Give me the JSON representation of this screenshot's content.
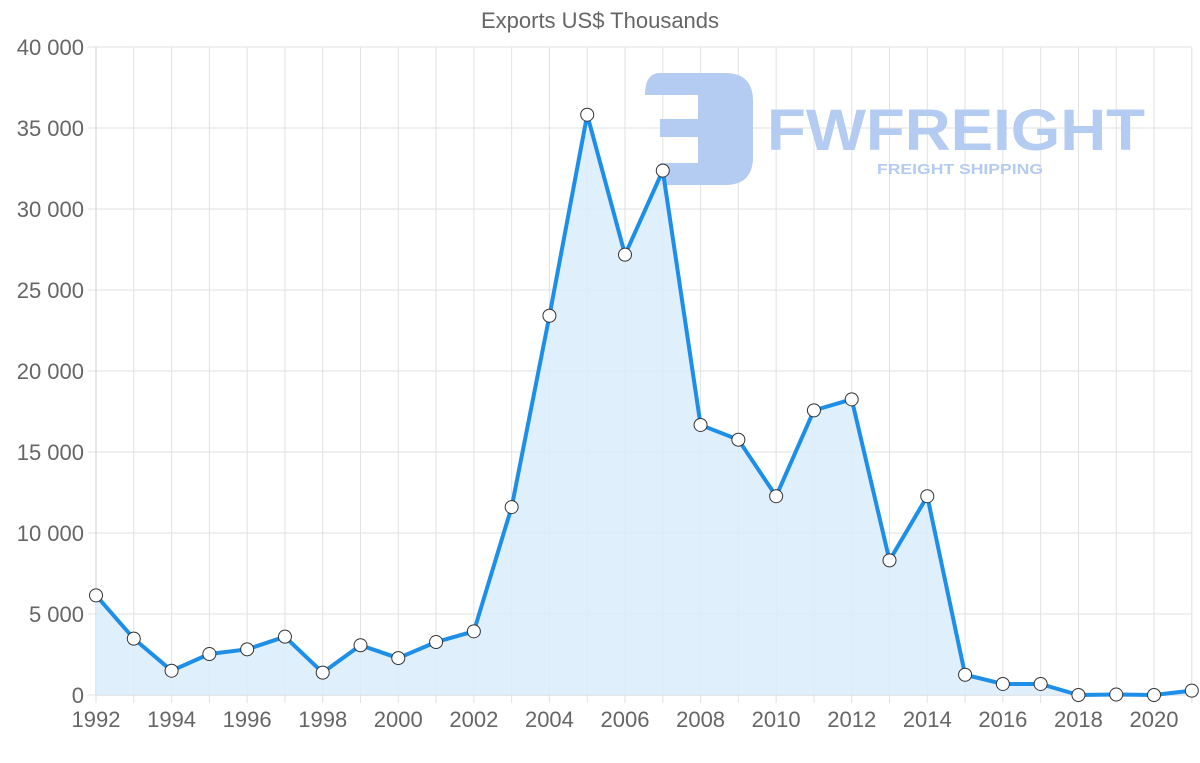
{
  "chart_data": {
    "type": "area",
    "title": "Exports US$ Thousands",
    "xlabel": "",
    "ylabel": "",
    "x": [
      1992,
      1993,
      1994,
      1995,
      1996,
      1997,
      1998,
      1999,
      2000,
      2001,
      2002,
      2003,
      2004,
      2005,
      2006,
      2007,
      2008,
      2009,
      2010,
      2011,
      2012,
      2013,
      2014,
      2015,
      2016,
      2017,
      2018,
      2019,
      2020,
      2021
    ],
    "series": [
      {
        "name": "Exports US$ Thousands",
        "values": [
          6150,
          3480,
          1500,
          2530,
          2820,
          3600,
          1380,
          3070,
          2280,
          3270,
          3930,
          11600,
          23410,
          35820,
          27180,
          32370,
          16670,
          15760,
          12270,
          17570,
          18250,
          8310,
          12270,
          1250,
          680,
          680,
          0,
          30,
          0,
          270
        ]
      }
    ],
    "ylim": [
      0,
      40000
    ],
    "yticks": [
      0,
      5000,
      10000,
      15000,
      20000,
      25000,
      30000,
      35000,
      40000
    ],
    "ytick_labels": [
      "0",
      "5 000",
      "10 000",
      "15 000",
      "20 000",
      "25 000",
      "30 000",
      "35 000",
      "40 000"
    ],
    "xtick_labels": [
      "1992",
      "1994",
      "1996",
      "1998",
      "2000",
      "2002",
      "2004",
      "2006",
      "2008",
      "2010",
      "2012",
      "2014",
      "2016",
      "2018",
      "2020"
    ],
    "grid": true,
    "legend": "none",
    "colors": {
      "line": "#1e8fe8",
      "fill": "#d9ecfb",
      "grid": "#e2e2e2",
      "text": "#666666",
      "point_fill": "#ffffff",
      "point_stroke": "#333333"
    }
  },
  "watermark": {
    "brand": "FWFREIGHT",
    "tagline": "FREIGHT SHIPPING",
    "color": "#b4cbf2"
  }
}
